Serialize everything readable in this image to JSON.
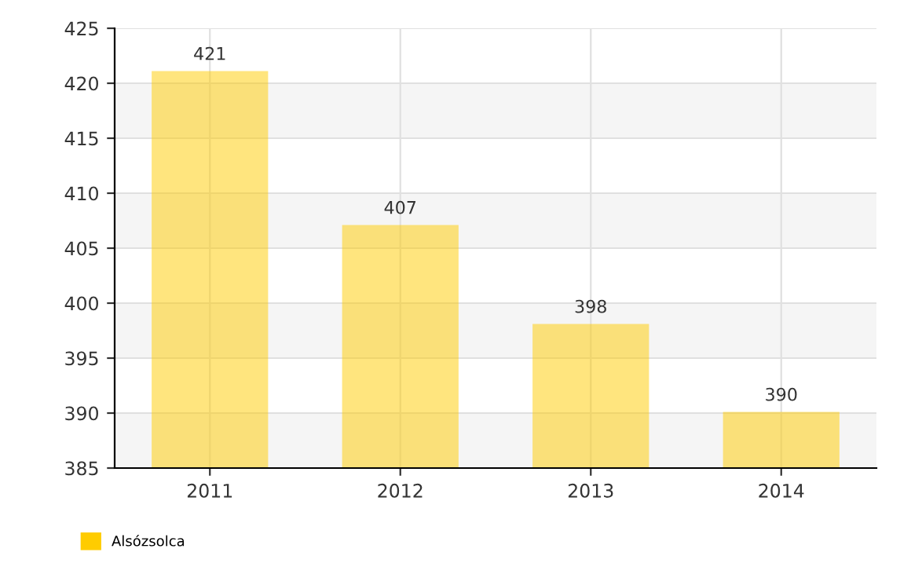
{
  "chart_data": {
    "type": "bar",
    "categories": [
      "2011",
      "2012",
      "2013",
      "2014"
    ],
    "series": [
      {
        "name": "Alsózsolca",
        "color": "#ffcc00",
        "values": [
          421,
          407,
          398,
          390
        ]
      }
    ],
    "ylim": [
      385,
      425
    ],
    "yticks": [
      385,
      390,
      395,
      400,
      405,
      410,
      415,
      420,
      425
    ],
    "data_labels": true,
    "grid": true,
    "legend": "bottom left"
  }
}
